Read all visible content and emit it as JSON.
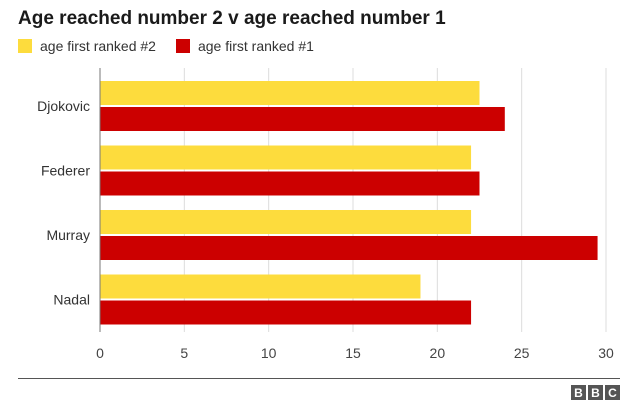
{
  "chart_data": {
    "type": "bar",
    "orientation": "horizontal",
    "title": "Age reached number 2 v age reached number 1",
    "categories": [
      "Djokovic",
      "Federer",
      "Murray",
      "Nadal"
    ],
    "series": [
      {
        "name": "age first ranked #2",
        "color": "#FDDC3D",
        "values": [
          22.5,
          22,
          22,
          19
        ]
      },
      {
        "name": "age first ranked #1",
        "color": "#CC0000",
        "values": [
          24,
          22.5,
          29.5,
          22
        ]
      }
    ],
    "xlim": [
      0,
      30
    ],
    "xticks": [
      0,
      5,
      10,
      15,
      20,
      25,
      30
    ],
    "grid": true,
    "legend_position": "top-left"
  },
  "footer": {
    "logo_letters": [
      "B",
      "B",
      "C"
    ]
  }
}
